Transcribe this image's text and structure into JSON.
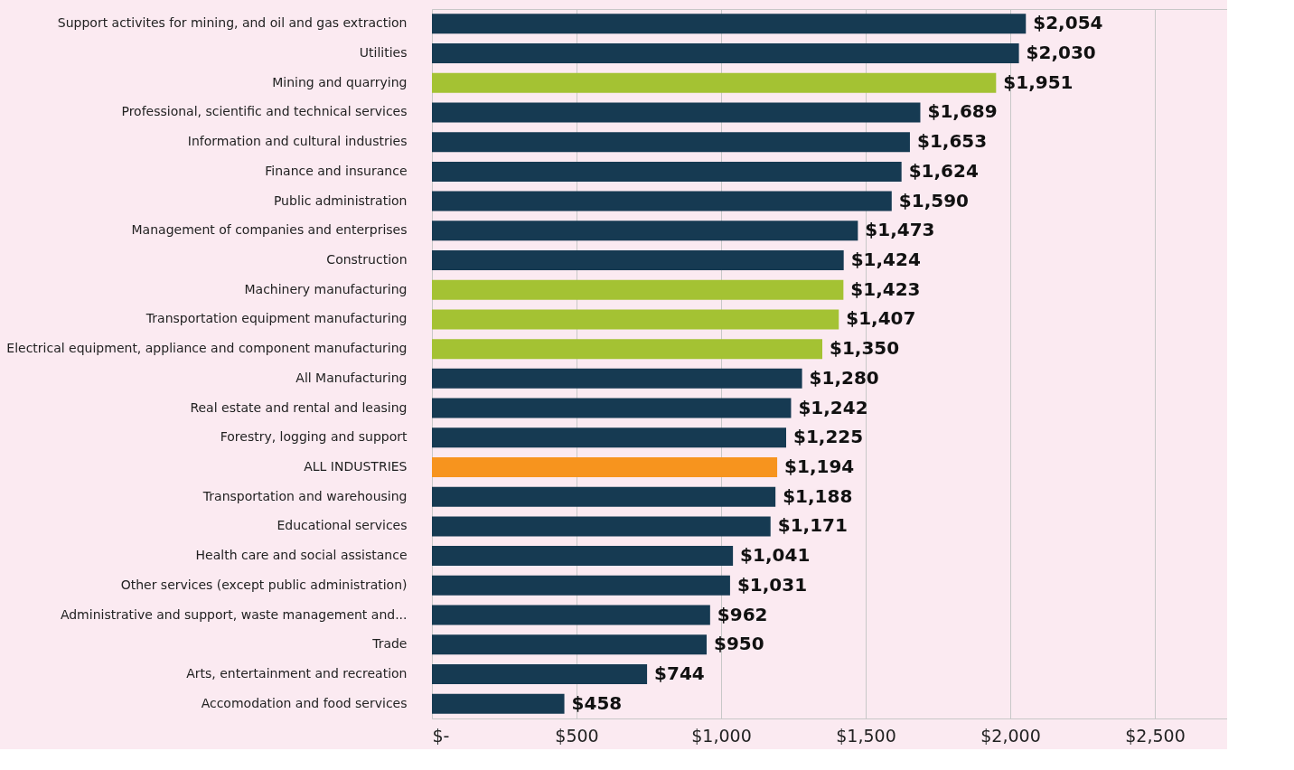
{
  "chart_data": {
    "type": "bar",
    "orientation": "horizontal",
    "categories": [
      "Support activites for mining, and oil and gas extraction",
      "Utilities",
      "Mining and quarrying",
      "Professional, scientific and technical services",
      "Information and cultural industries",
      "Finance and insurance",
      "Public administration",
      "Management of companies and enterprises",
      "Construction",
      "Machinery manufacturing",
      "Transportation equipment manufacturing",
      "Electrical equipment, appliance and component manufacturing",
      "All Manufacturing",
      "Real estate and rental and leasing",
      "Forestry, logging and support",
      "ALL INDUSTRIES",
      "Transportation and warehousing",
      "Educational services",
      "Health care and social assistance",
      "Other services (except public administration)",
      "Administrative and support, waste management and...",
      "Trade",
      "Arts, entertainment and recreation",
      "Accomodation and food services"
    ],
    "values": [
      2054,
      2030,
      1951,
      1689,
      1653,
      1624,
      1590,
      1473,
      1424,
      1423,
      1407,
      1350,
      1280,
      1242,
      1225,
      1194,
      1188,
      1171,
      1041,
      1031,
      962,
      950,
      744,
      458
    ],
    "value_labels": [
      "$2,054",
      "$2,030",
      "$1,951",
      "$1,689",
      "$1,653",
      "$1,624",
      "$1,590",
      "$1,473",
      "$1,424",
      "$1,423",
      "$1,407",
      "$1,350",
      "$1,280",
      "$1,242",
      "$1,225",
      "$1,194",
      "$1,188",
      "$1,171",
      "$1,041",
      "$1,031",
      "$962",
      "$950",
      "$744",
      "$458"
    ],
    "colors": [
      "#163a52",
      "#163a52",
      "#a4c233",
      "#163a52",
      "#163a52",
      "#163a52",
      "#163a52",
      "#163a52",
      "#163a52",
      "#a4c233",
      "#a4c233",
      "#a4c233",
      "#163a52",
      "#163a52",
      "#163a52",
      "#f7941e",
      "#163a52",
      "#163a52",
      "#163a52",
      "#163a52",
      "#163a52",
      "#163a52",
      "#163a52",
      "#163a52"
    ],
    "xlim": [
      0,
      2750
    ],
    "xticks": [
      {
        "value": 0,
        "label": "$-"
      },
      {
        "value": 500,
        "label": "$500"
      },
      {
        "value": 1000,
        "label": "$1,000"
      },
      {
        "value": 1500,
        "label": "$1,500"
      },
      {
        "value": 2000,
        "label": "$2,000"
      },
      {
        "value": 2500,
        "label": "$2,500"
      }
    ],
    "grid": "x"
  }
}
